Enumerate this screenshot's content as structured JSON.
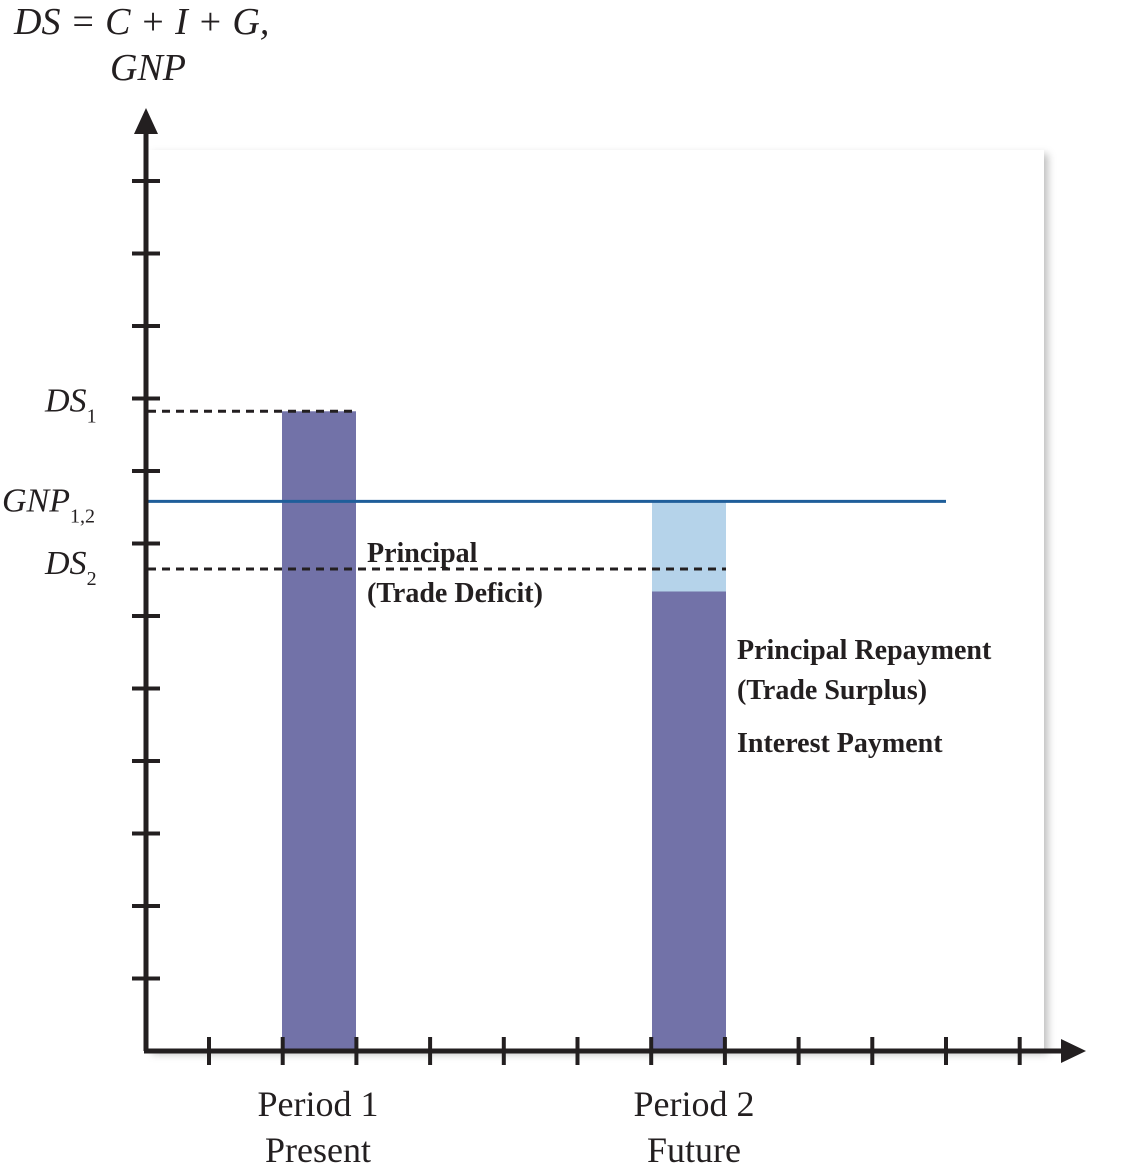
{
  "chart_data": {
    "type": "bar",
    "ylabel_line1": "DS = C + I + G,",
    "ylabel_line2": "GNP",
    "categories": [
      {
        "line1": "Period 1",
        "line2": "Present"
      },
      {
        "line1": "Period 2",
        "line2": "Future"
      }
    ],
    "levels": {
      "ds1": 0.71,
      "gnp": 0.61,
      "ds2": 0.535,
      "interest_top": 0.51
    },
    "ylim": [
      0,
      1
    ],
    "y_ticks": 12,
    "x_ticks": 12,
    "y_labels": {
      "ds1": {
        "main": "DS",
        "sub": "1"
      },
      "gnp": {
        "main": "GNP",
        "sub": "1,2"
      },
      "ds2": {
        "main": "DS",
        "sub": "2"
      }
    },
    "segments": {
      "base_bar": "#7272a8",
      "principal_repayment": "#b5d3ea",
      "interest_payment": "#6e2a8c"
    },
    "gnp_line_color": "#1f5e9a",
    "annotations": {
      "principal_line1": "Principal",
      "principal_line2": "(Trade Deficit)",
      "repayment_line1": "Principal Repayment",
      "repayment_line2": "(Trade Surplus)",
      "interest": "Interest Payment"
    }
  }
}
